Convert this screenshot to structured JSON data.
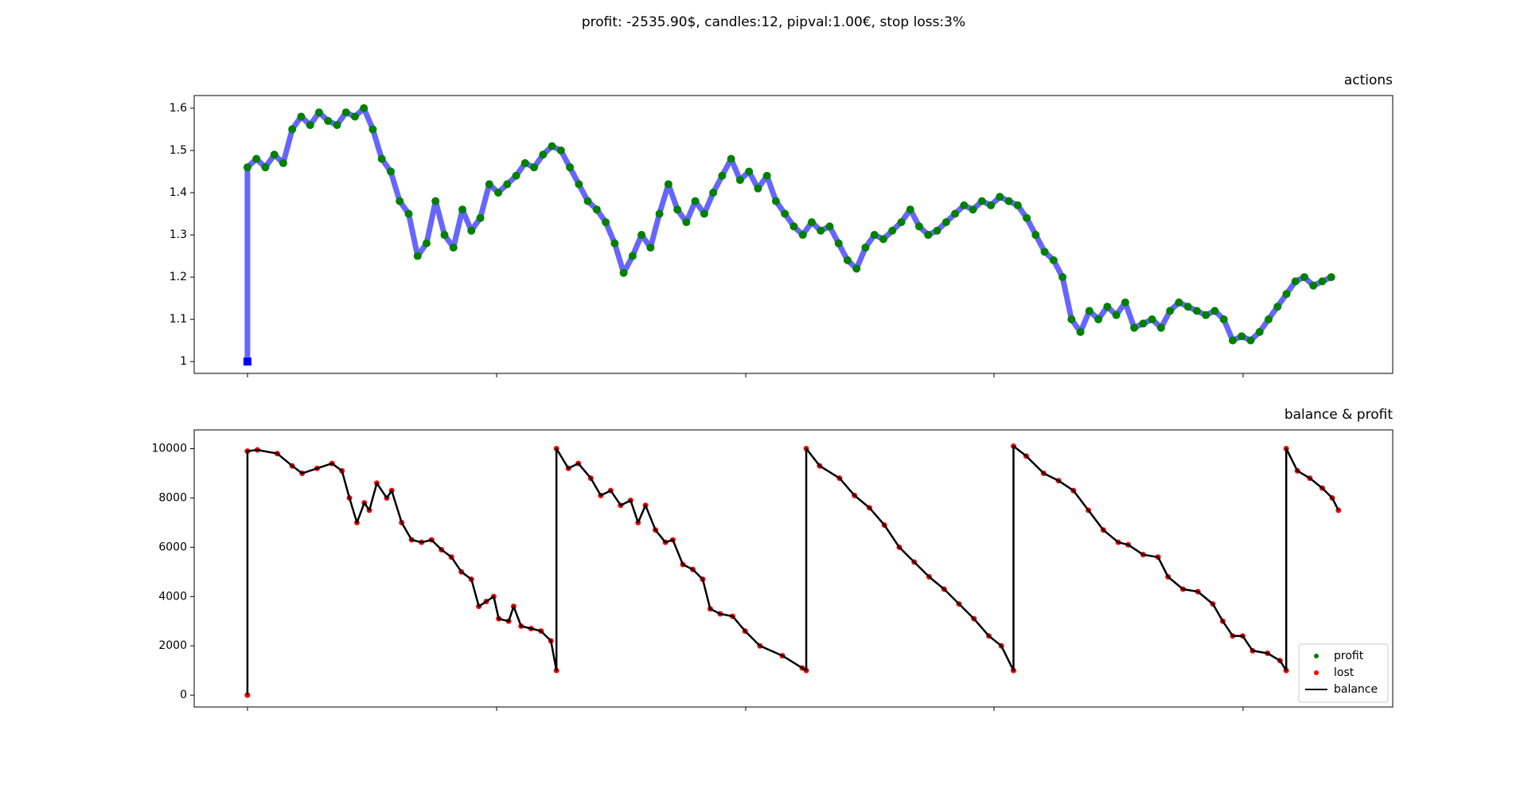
{
  "title": "profit: -2535.90$, candles:12, pipval:1.00€, stop loss:3%",
  "chart_data": [
    {
      "type": "line",
      "title": "actions",
      "x": [
        0,
        0,
        36,
        72,
        108,
        144,
        180,
        216,
        252,
        288,
        324,
        360,
        396,
        432,
        468,
        504,
        540,
        576,
        612,
        648,
        684,
        720,
        756,
        792,
        828,
        864,
        900,
        936,
        972,
        1008,
        1044,
        1080,
        1116,
        1152,
        1188,
        1224,
        1260,
        1296,
        1332,
        1368,
        1404,
        1440,
        1476,
        1512,
        1548,
        1584,
        1620,
        1656,
        1692,
        1728,
        1764,
        1800,
        1836,
        1872,
        1908,
        1944,
        1980,
        2016,
        2052,
        2088,
        2124,
        2160,
        2196,
        2232,
        2268,
        2304,
        2340,
        2376,
        2412,
        2448,
        2484,
        2520,
        2556,
        2592,
        2628,
        2664,
        2700,
        2736,
        2772,
        2808,
        2844,
        2880,
        2916,
        2952,
        2988,
        3024,
        3060,
        3096,
        3132,
        3168,
        3204,
        3240,
        3276,
        3312,
        3348,
        3384,
        3420,
        3456,
        3492,
        3528,
        3564,
        3600,
        3636,
        3672,
        3708,
        3744,
        3780,
        3816,
        3852,
        3888,
        3924,
        3960,
        3996,
        4032,
        4068,
        4104,
        4140,
        4176,
        4212,
        4248,
        4284,
        4320,
        4356
      ],
      "series": [
        {
          "color": "#0000ff",
          "line": true,
          "marker": "square",
          "values": [
            1.0,
            1.46,
            1.48,
            1.46,
            1.49,
            1.47,
            1.55,
            1.58,
            1.56,
            1.59,
            1.57,
            1.56,
            1.59,
            1.58,
            1.6,
            1.55,
            1.48,
            1.45,
            1.38,
            1.35,
            1.25,
            1.28,
            1.38,
            1.3,
            1.27,
            1.36,
            1.31,
            1.34,
            1.42,
            1.4,
            1.42,
            1.44,
            1.47,
            1.46,
            1.49,
            1.51,
            1.5,
            1.46,
            1.42,
            1.38,
            1.36,
            1.33,
            1.28,
            1.21,
            1.25,
            1.3,
            1.27,
            1.35,
            1.42,
            1.36,
            1.33,
            1.38,
            1.35,
            1.4,
            1.44,
            1.48,
            1.43,
            1.45,
            1.41,
            1.44,
            1.38,
            1.35,
            1.32,
            1.3,
            1.33,
            1.31,
            1.32,
            1.28,
            1.24,
            1.22,
            1.27,
            1.3,
            1.29,
            1.31,
            1.33,
            1.36,
            1.32,
            1.3,
            1.31,
            1.33,
            1.35,
            1.37,
            1.36,
            1.38,
            1.37,
            1.39,
            1.38,
            1.37,
            1.34,
            1.3,
            1.26,
            1.24,
            1.2,
            1.1,
            1.07,
            1.12,
            1.1,
            1.13,
            1.11,
            1.14,
            1.08,
            1.09,
            1.1,
            1.08,
            1.12,
            1.14,
            1.13,
            1.12,
            1.11,
            1.12,
            1.1,
            1.05,
            1.06,
            1.05,
            1.07,
            1.1,
            1.13,
            1.16,
            1.19,
            1.2,
            1.18,
            1.19,
            1.2
          ]
        },
        {
          "color": "#008000",
          "line": false,
          "marker": "circle",
          "values": [
            null,
            1.46,
            1.48,
            1.46,
            1.49,
            1.47,
            1.55,
            1.58,
            1.56,
            1.59,
            1.57,
            1.56,
            1.59,
            1.58,
            1.6,
            1.55,
            1.48,
            1.45,
            1.38,
            1.35,
            1.25,
            1.28,
            1.38,
            1.3,
            1.27,
            1.36,
            1.31,
            1.34,
            1.42,
            1.4,
            1.42,
            1.44,
            1.47,
            1.46,
            1.49,
            1.51,
            1.5,
            1.46,
            1.42,
            1.38,
            1.36,
            1.33,
            1.28,
            1.21,
            1.25,
            1.3,
            1.27,
            1.35,
            1.42,
            1.36,
            1.33,
            1.38,
            1.35,
            1.4,
            1.44,
            1.48,
            1.43,
            1.45,
            1.41,
            1.44,
            1.38,
            1.35,
            1.32,
            1.3,
            1.33,
            1.31,
            1.32,
            1.28,
            1.24,
            1.22,
            1.27,
            1.3,
            1.29,
            1.31,
            1.33,
            1.36,
            1.32,
            1.3,
            1.31,
            1.33,
            1.35,
            1.37,
            1.36,
            1.38,
            1.37,
            1.39,
            1.38,
            1.37,
            1.34,
            1.3,
            1.26,
            1.24,
            1.2,
            1.1,
            1.07,
            1.12,
            1.1,
            1.13,
            1.11,
            1.14,
            1.08,
            1.09,
            1.1,
            1.08,
            1.12,
            1.14,
            1.13,
            1.12,
            1.11,
            1.12,
            1.1,
            1.05,
            1.06,
            1.05,
            1.07,
            1.1,
            1.13,
            1.16,
            1.19,
            1.2,
            1.18,
            1.19,
            1.2
          ]
        }
      ],
      "xlim": [
        -214,
        4603
      ],
      "ylim": [
        0.972,
        1.63
      ],
      "yticks": [
        1.0,
        1.1,
        1.2,
        1.3,
        1.4,
        1.5,
        1.6
      ]
    },
    {
      "type": "line",
      "title": "balance & profit",
      "legend": "lower right",
      "x": [
        0,
        0,
        40,
        120,
        180,
        220,
        280,
        340,
        380,
        410,
        440,
        470,
        490,
        520,
        560,
        580,
        620,
        660,
        700,
        740,
        780,
        820,
        860,
        900,
        930,
        960,
        990,
        1010,
        1050,
        1070,
        1100,
        1140,
        1180,
        1220,
        1242,
        1242,
        1290,
        1330,
        1380,
        1420,
        1460,
        1500,
        1540,
        1570,
        1600,
        1640,
        1680,
        1710,
        1750,
        1790,
        1830,
        1860,
        1900,
        1950,
        2000,
        2060,
        2150,
        2230,
        2246,
        2246,
        2300,
        2380,
        2440,
        2500,
        2560,
        2620,
        2680,
        2740,
        2800,
        2860,
        2920,
        2980,
        3030,
        3079,
        3079,
        3130,
        3200,
        3260,
        3320,
        3380,
        3440,
        3500,
        3540,
        3600,
        3660,
        3700,
        3760,
        3820,
        3880,
        3920,
        3960,
        4000,
        4040,
        4100,
        4150,
        4175,
        4175,
        4220,
        4270,
        4320,
        4360,
        4385
      ],
      "series": [
        {
          "name": "profit",
          "color": "#008000",
          "line": false,
          "marker": "circle"
        },
        {
          "name": "lost",
          "color": "#ff0000",
          "line": false,
          "marker": "circle",
          "values": [
            0,
            9900,
            9950,
            9800,
            9300,
            9000,
            9200,
            9400,
            9100,
            8000,
            7000,
            7800,
            7500,
            8600,
            8000,
            8300,
            7000,
            6300,
            6200,
            6300,
            5900,
            5600,
            5000,
            4700,
            3600,
            3800,
            4000,
            3100,
            3000,
            3600,
            2800,
            2700,
            2600,
            2200,
            1000,
            10000,
            9200,
            9400,
            8800,
            8100,
            8300,
            7700,
            7900,
            7000,
            7700,
            6700,
            6200,
            6300,
            5300,
            5100,
            4700,
            3500,
            3300,
            3200,
            2600,
            2000,
            1600,
            1100,
            1000,
            10000,
            9300,
            8800,
            8100,
            7600,
            6900,
            6000,
            5400,
            4800,
            4300,
            3700,
            3100,
            2400,
            2000,
            1000,
            10100,
            9700,
            9000,
            8700,
            8300,
            7500,
            6700,
            6200,
            6100,
            5700,
            5600,
            4800,
            4300,
            4200,
            3700,
            3000,
            2400,
            2400,
            1800,
            1700,
            1400,
            1000,
            10000,
            9100,
            8800,
            8400,
            8000,
            7500
          ]
        },
        {
          "name": "balance",
          "color": "#000000",
          "line": true,
          "marker": "none",
          "values": [
            0,
            9900,
            9950,
            9800,
            9300,
            9000,
            9200,
            9400,
            9100,
            8000,
            7000,
            7800,
            7500,
            8600,
            8000,
            8300,
            7000,
            6300,
            6200,
            6300,
            5900,
            5600,
            5000,
            4700,
            3600,
            3800,
            4000,
            3100,
            3000,
            3600,
            2800,
            2700,
            2600,
            2200,
            1000,
            10000,
            9200,
            9400,
            8800,
            8100,
            8300,
            7700,
            7900,
            7000,
            7700,
            6700,
            6200,
            6300,
            5300,
            5100,
            4700,
            3500,
            3300,
            3200,
            2600,
            2000,
            1600,
            1100,
            1000,
            10000,
            9300,
            8800,
            8100,
            7600,
            6900,
            6000,
            5400,
            4800,
            4300,
            3700,
            3100,
            2400,
            2000,
            1000,
            10100,
            9700,
            9000,
            8700,
            8300,
            7500,
            6700,
            6200,
            6100,
            5700,
            5600,
            4800,
            4300,
            4200,
            3700,
            3000,
            2400,
            2400,
            1800,
            1700,
            1400,
            1000,
            10000,
            9100,
            8800,
            8400,
            8000,
            7500
          ]
        }
      ],
      "xlim": [
        -214,
        4603
      ],
      "ylim": [
        -480,
        10760
      ],
      "yticks": [
        0,
        2000,
        4000,
        6000,
        8000,
        10000
      ]
    }
  ]
}
